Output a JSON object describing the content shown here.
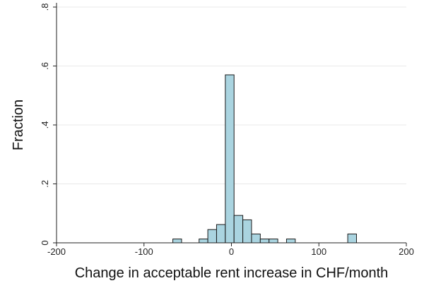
{
  "chart_data": {
    "type": "bar",
    "xlabel": "Change in acceptable rent increase in CHF/month",
    "ylabel": "Fraction",
    "xlim": [
      -200,
      200
    ],
    "ylim": [
      0,
      0.8
    ],
    "xticks": [
      -200,
      -100,
      0,
      100,
      200
    ],
    "xtick_labels": [
      "-200",
      "-100",
      "0",
      "100",
      "200"
    ],
    "yticks": [
      0,
      0.2,
      0.4,
      0.6,
      0.8
    ],
    "ytick_labels": [
      "0",
      ".2",
      ".4",
      ".6",
      ".8"
    ],
    "grid": "horizontal",
    "bin_width": 10,
    "bins": [
      {
        "x0": -67,
        "x1": -57,
        "value": 0.013
      },
      {
        "x0": -37,
        "x1": -27,
        "value": 0.013
      },
      {
        "x0": -27,
        "x1": -17,
        "value": 0.045
      },
      {
        "x0": -17,
        "x1": -7,
        "value": 0.062
      },
      {
        "x0": -7,
        "x1": 3,
        "value": 0.57
      },
      {
        "x0": 3,
        "x1": 13,
        "value": 0.093
      },
      {
        "x0": 13,
        "x1": 23,
        "value": 0.078
      },
      {
        "x0": 23,
        "x1": 33,
        "value": 0.03
      },
      {
        "x0": 33,
        "x1": 43,
        "value": 0.013
      },
      {
        "x0": 43,
        "x1": 53,
        "value": 0.013
      },
      {
        "x0": 63,
        "x1": 73,
        "value": 0.013
      },
      {
        "x0": 133,
        "x1": 143,
        "value": 0.03
      }
    ],
    "bar_fill": "#aad4e0",
    "bar_stroke": "#1a1a1a",
    "grid_color": "#e8e8e8"
  }
}
